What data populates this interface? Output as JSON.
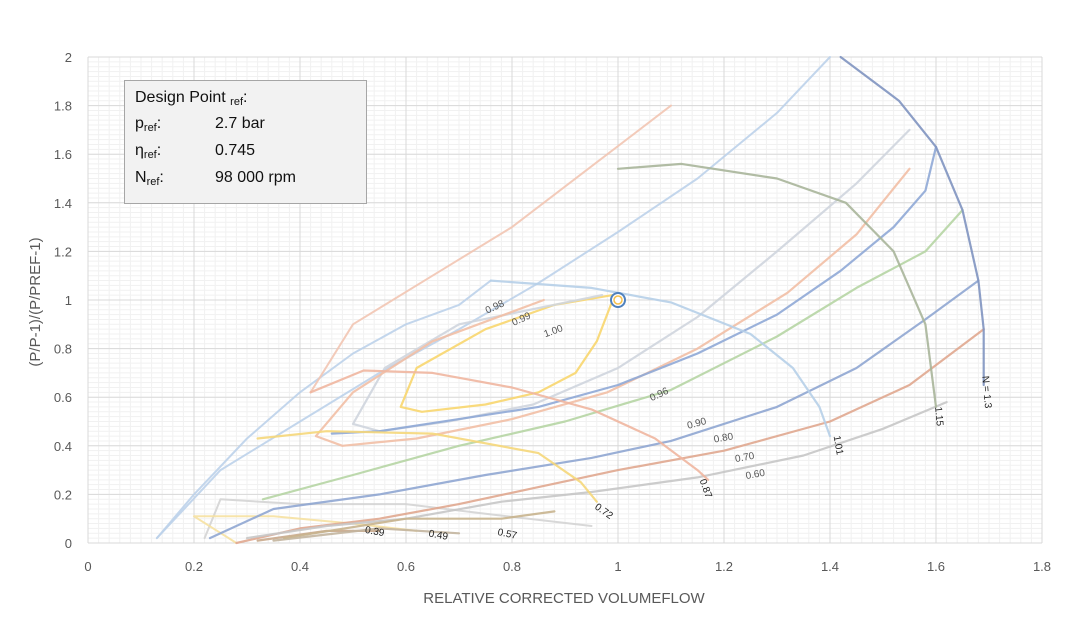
{
  "chart_data": {
    "type": "line",
    "title": "",
    "xlabel": "RELATIVE CORRECTED VOLUMEFLOW",
    "ylabel": "(P/P-1)/(P/PREF-1)",
    "xlim": [
      0,
      1.8
    ],
    "ylim": [
      0,
      2
    ],
    "x_ticks": [
      "0",
      "0.2",
      "0.4",
      "0.6",
      "0.8",
      "1",
      "1.2",
      "1.4",
      "1.6",
      "1.8"
    ],
    "y_ticks": [
      "0",
      "0.2",
      "0.4",
      "0.6",
      "0.8",
      "1",
      "1.2",
      "1.4",
      "1.6",
      "1.8",
      "2"
    ],
    "grid": true,
    "speed_lines": [
      {
        "name": "0.39",
        "color": "#c9a98b",
        "points": [
          [
            0.32,
            0.01
          ],
          [
            0.45,
            0.05
          ],
          [
            0.55,
            0.05
          ]
        ]
      },
      {
        "name": "0.49",
        "color": "#c3b59e",
        "points": [
          [
            0.35,
            0.01
          ],
          [
            0.55,
            0.06
          ],
          [
            0.7,
            0.04
          ]
        ]
      },
      {
        "name": "0.57",
        "color": "#c8b48e",
        "points": [
          [
            0.37,
            0.02
          ],
          [
            0.6,
            0.1
          ],
          [
            0.78,
            0.1
          ],
          [
            0.88,
            0.13
          ]
        ]
      },
      {
        "name": "0.72",
        "color": "#f5d77a",
        "points": [
          [
            0.32,
            0.43
          ],
          [
            0.45,
            0.46
          ],
          [
            0.65,
            0.45
          ],
          [
            0.85,
            0.37
          ],
          [
            0.93,
            0.25
          ],
          [
            0.96,
            0.17
          ]
        ]
      },
      {
        "name": "0.87",
        "color": "#f0b6a0",
        "points": [
          [
            0.42,
            0.62
          ],
          [
            0.52,
            0.71
          ],
          [
            0.65,
            0.7
          ],
          [
            0.8,
            0.64
          ],
          [
            0.95,
            0.55
          ],
          [
            1.07,
            0.43
          ],
          [
            1.15,
            0.3
          ],
          [
            1.17,
            0.26
          ]
        ]
      },
      {
        "name": "1.01",
        "color": "#b6cfe8",
        "points": [
          [
            0.76,
            1.08
          ],
          [
            0.95,
            1.05
          ],
          [
            1.1,
            0.99
          ],
          [
            1.25,
            0.86
          ],
          [
            1.33,
            0.72
          ],
          [
            1.38,
            0.56
          ],
          [
            1.4,
            0.44
          ]
        ]
      },
      {
        "name": "1.15",
        "color": "#a9b59a",
        "points": [
          [
            1.0,
            1.54
          ],
          [
            1.12,
            1.56
          ],
          [
            1.3,
            1.5
          ],
          [
            1.43,
            1.4
          ],
          [
            1.52,
            1.2
          ],
          [
            1.58,
            0.9
          ],
          [
            1.6,
            0.56
          ]
        ]
      },
      {
        "name": "N = 1.3",
        "color": "#7f93c0",
        "points": [
          [
            1.42,
            2.0
          ],
          [
            1.53,
            1.82
          ],
          [
            1.6,
            1.63
          ],
          [
            1.65,
            1.37
          ],
          [
            1.68,
            1.08
          ],
          [
            1.69,
            0.88
          ],
          [
            1.69,
            0.65
          ]
        ]
      }
    ],
    "efficiency_lines": [
      {
        "name": "1.00",
        "color": "#f8d66e",
        "closed": true,
        "points": [
          [
            0.99,
            1.02
          ],
          [
            0.88,
            0.98
          ],
          [
            0.75,
            0.88
          ],
          [
            0.62,
            0.72
          ],
          [
            0.59,
            0.56
          ],
          [
            0.63,
            0.54
          ],
          [
            0.75,
            0.57
          ],
          [
            0.85,
            0.62
          ],
          [
            0.92,
            0.7
          ],
          [
            0.96,
            0.83
          ],
          [
            0.99,
            1.0
          ]
        ]
      },
      {
        "name": "0.99",
        "color": "#cfd5de",
        "points": [
          [
            0.97,
            1.02
          ],
          [
            0.7,
            0.9
          ],
          [
            0.56,
            0.72
          ],
          [
            0.5,
            0.49
          ],
          [
            0.55,
            0.46
          ],
          [
            0.68,
            0.5
          ],
          [
            0.84,
            0.57
          ],
          [
            1.0,
            0.72
          ],
          [
            1.15,
            0.93
          ],
          [
            1.3,
            1.2
          ],
          [
            1.45,
            1.48
          ],
          [
            1.55,
            1.7
          ]
        ]
      },
      {
        "name": "0.98",
        "color": "#f2bfa5",
        "points": [
          [
            0.86,
            1.0
          ],
          [
            0.65,
            0.83
          ],
          [
            0.5,
            0.62
          ],
          [
            0.43,
            0.44
          ],
          [
            0.48,
            0.4
          ],
          [
            0.62,
            0.43
          ],
          [
            0.8,
            0.51
          ],
          [
            0.98,
            0.62
          ],
          [
            1.15,
            0.8
          ],
          [
            1.32,
            1.03
          ],
          [
            1.45,
            1.27
          ],
          [
            1.55,
            1.54
          ]
        ]
      },
      {
        "name": "0.96",
        "color": "#8fa9d6",
        "points": [
          [
            0.46,
            0.45
          ],
          [
            0.55,
            0.46
          ],
          [
            0.7,
            0.51
          ],
          [
            0.85,
            0.56
          ],
          [
            1.0,
            0.65
          ],
          [
            1.15,
            0.78
          ],
          [
            1.3,
            0.94
          ],
          [
            1.42,
            1.12
          ],
          [
            1.52,
            1.3
          ],
          [
            1.58,
            1.45
          ],
          [
            1.6,
            1.63
          ]
        ]
      },
      {
        "name": "0.90",
        "color": "#b6d5a4",
        "points": [
          [
            0.33,
            0.18
          ],
          [
            0.5,
            0.28
          ],
          [
            0.7,
            0.4
          ],
          [
            0.9,
            0.5
          ],
          [
            1.1,
            0.63
          ],
          [
            1.3,
            0.85
          ],
          [
            1.45,
            1.05
          ],
          [
            1.58,
            1.2
          ],
          [
            1.65,
            1.37
          ]
        ]
      },
      {
        "name": "0.80",
        "color": "#8fa6d2",
        "points": [
          [
            0.23,
            0.02
          ],
          [
            0.35,
            0.14
          ],
          [
            0.55,
            0.2
          ],
          [
            0.75,
            0.28
          ],
          [
            0.95,
            0.35
          ],
          [
            1.1,
            0.42
          ],
          [
            1.3,
            0.56
          ],
          [
            1.45,
            0.72
          ],
          [
            1.58,
            0.92
          ],
          [
            1.68,
            1.08
          ]
        ]
      },
      {
        "name": "0.70",
        "color": "#e0a78f",
        "points": [
          [
            0.28,
            0.0
          ],
          [
            0.4,
            0.06
          ],
          [
            0.55,
            0.1
          ],
          [
            0.7,
            0.16
          ],
          [
            0.85,
            0.23
          ],
          [
            1.0,
            0.3
          ],
          [
            1.2,
            0.38
          ],
          [
            1.4,
            0.5
          ],
          [
            1.55,
            0.65
          ],
          [
            1.69,
            0.88
          ]
        ]
      },
      {
        "name": "0.60",
        "color": "#c7c7c7",
        "points": [
          [
            0.3,
            0.02
          ],
          [
            0.45,
            0.07
          ],
          [
            0.6,
            0.1
          ],
          [
            0.78,
            0.17
          ],
          [
            0.95,
            0.21
          ],
          [
            1.15,
            0.27
          ],
          [
            1.35,
            0.36
          ],
          [
            1.5,
            0.47
          ],
          [
            1.62,
            0.58
          ]
        ]
      }
    ],
    "extra_lines": [
      {
        "color": "#bcd2ea",
        "points": [
          [
            0.13,
            0.02
          ],
          [
            0.25,
            0.3
          ],
          [
            0.4,
            0.5
          ],
          [
            0.55,
            0.7
          ],
          [
            0.7,
            0.88
          ],
          [
            0.85,
            1.07
          ],
          [
            1.0,
            1.28
          ],
          [
            1.15,
            1.5
          ],
          [
            1.3,
            1.77
          ],
          [
            1.4,
            2.0
          ]
        ]
      },
      {
        "color": "#bcd2ea",
        "points": [
          [
            0.13,
            0.02
          ],
          [
            0.2,
            0.2
          ],
          [
            0.3,
            0.43
          ],
          [
            0.4,
            0.62
          ],
          [
            0.5,
            0.78
          ],
          [
            0.6,
            0.9
          ],
          [
            0.7,
            0.98
          ],
          [
            0.76,
            1.08
          ]
        ]
      },
      {
        "color": "#f2c5b2",
        "points": [
          [
            0.42,
            0.62
          ],
          [
            0.5,
            0.9
          ],
          [
            0.65,
            1.1
          ],
          [
            0.8,
            1.3
          ],
          [
            0.95,
            1.55
          ],
          [
            1.1,
            1.8
          ]
        ]
      },
      {
        "color": "#d4d4d4",
        "points": [
          [
            0.22,
            0.02
          ],
          [
            0.25,
            0.18
          ],
          [
            0.4,
            0.16
          ],
          [
            0.6,
            0.16
          ],
          [
            0.75,
            0.12
          ],
          [
            0.95,
            0.07
          ]
        ]
      },
      {
        "color": "#f6e1a1",
        "points": [
          [
            0.28,
            0.0
          ],
          [
            0.2,
            0.11
          ],
          [
            0.35,
            0.11
          ],
          [
            0.5,
            0.08
          ],
          [
            0.62,
            0.05
          ]
        ]
      }
    ],
    "design_point": {
      "x": 1.0,
      "y": 1.0,
      "color": "#4f81bd"
    },
    "label_positions": [
      {
        "text": "0.39",
        "x": 0.54,
        "y": 0.035,
        "rot": 10
      },
      {
        "text": "0.49",
        "x": 0.66,
        "y": 0.02,
        "rot": 10
      },
      {
        "text": "0.57",
        "x": 0.79,
        "y": 0.025,
        "rot": 12
      },
      {
        "text": "0.72",
        "x": 0.97,
        "y": 0.12,
        "rot": 35
      },
      {
        "text": "0.87",
        "x": 1.16,
        "y": 0.22,
        "rot": 70
      },
      {
        "text": "1.01",
        "x": 1.41,
        "y": 0.4,
        "rot": 80
      },
      {
        "text": "1.15",
        "x": 1.6,
        "y": 0.52,
        "rot": 85
      },
      {
        "text": "N = 1.3",
        "x": 1.69,
        "y": 0.62,
        "rot": 85
      },
      {
        "text": "0.98",
        "x": 0.77,
        "y": 0.96,
        "rot": -25
      },
      {
        "text": "0.99",
        "x": 0.82,
        "y": 0.91,
        "rot": -25
      },
      {
        "text": "1.00",
        "x": 0.88,
        "y": 0.86,
        "rot": -20
      },
      {
        "text": "0.96",
        "x": 1.08,
        "y": 0.6,
        "rot": -25
      },
      {
        "text": "0.90",
        "x": 1.15,
        "y": 0.48,
        "rot": -15
      },
      {
        "text": "0.80",
        "x": 1.2,
        "y": 0.42,
        "rot": -10
      },
      {
        "text": "0.70",
        "x": 1.24,
        "y": 0.34,
        "rot": -10
      },
      {
        "text": "0.60",
        "x": 1.26,
        "y": 0.27,
        "rot": -10
      }
    ]
  },
  "info_box": {
    "title_main": "Design Point",
    "title_sub": "ref",
    "title_colon": ":",
    "rows": [
      {
        "key_main": "p",
        "key_sub": "ref",
        "key_colon": ":",
        "value": "2.7 bar"
      },
      {
        "key_main": "η",
        "key_sub": "ref",
        "key_colon": ":",
        "value": "0.745"
      },
      {
        "key_main": "N",
        "key_sub": "ref",
        "key_colon": ":",
        "value": "98 000 rpm"
      }
    ]
  }
}
